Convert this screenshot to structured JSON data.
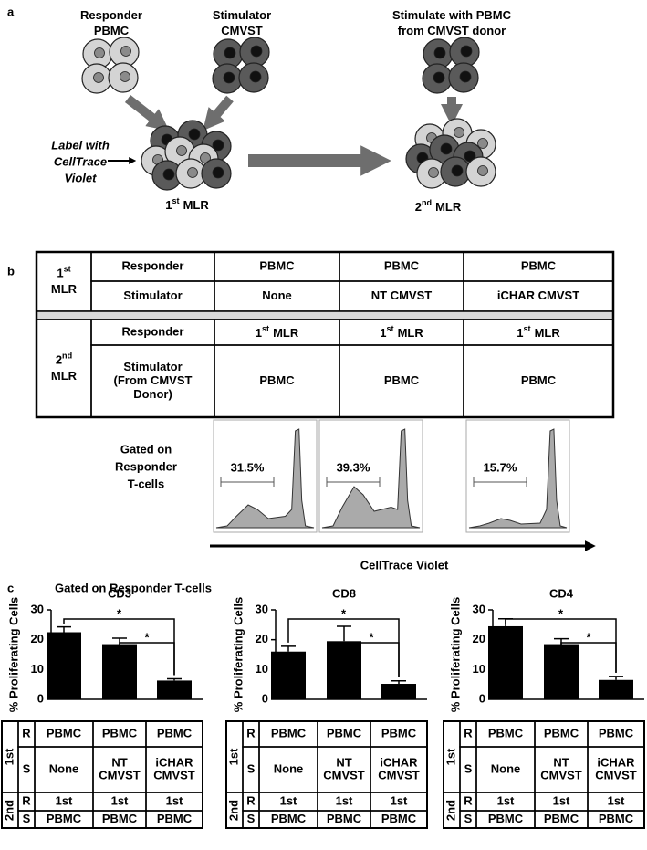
{
  "panel_a": {
    "label": "a",
    "responder": [
      "Responder",
      "PBMC"
    ],
    "stimulator": [
      "Stimulator",
      "CMVST"
    ],
    "restimulate": [
      "Stimulate with PBMC",
      "from CMVST donor"
    ],
    "label_note": [
      "Label with",
      "CellTrace",
      "Violet"
    ],
    "first_mlr": {
      "ord": "1",
      "sup": "st",
      "text": "MLR"
    },
    "second_mlr": {
      "ord": "2",
      "sup": "nd",
      "text": "MLR"
    }
  },
  "panel_b": {
    "label": "b",
    "table": {
      "groups": [
        {
          "ord": "1",
          "sup": "st",
          "text": "MLR",
          "rows": [
            [
              "Responder",
              "PBMC",
              "PBMC",
              "PBMC"
            ],
            [
              "Stimulator",
              "None",
              "NT CMVST",
              "iCHAR CMVST"
            ]
          ]
        },
        {
          "ord": "2",
          "sup": "nd",
          "text": "MLR",
          "rows": [
            [
              "Responder",
              {
                "ord": "1",
                "sup": "st",
                "text": "MLR"
              },
              {
                "ord": "1",
                "sup": "st",
                "text": "MLR"
              },
              {
                "ord": "1",
                "sup": "st",
                "text": "MLR"
              }
            ],
            [
              [
                "Stimulator",
                "(From CMVST",
                "Donor)"
              ],
              "PBMC",
              "PBMC",
              "PBMC"
            ]
          ]
        }
      ]
    },
    "gate_label": [
      "Gated on",
      "Responder",
      "T-cells"
    ],
    "percentages": [
      "31.5%",
      "39.3%",
      "15.7%"
    ],
    "x_axis_label": "CellTrace Violet"
  },
  "panel_c": {
    "label": "c",
    "subtitle": "Gated on Responder T-cells",
    "tables": [
      {
        "groups": [
          {
            "label": "1st",
            "rows": [
              [
                "R",
                "PBMC",
                "PBMC",
                "PBMC"
              ],
              [
                "S",
                "None",
                [
                  "NT",
                  "CMVST"
                ],
                [
                  "iCHAR",
                  "CMVST"
                ]
              ]
            ]
          },
          {
            "label": "2nd",
            "rows": [
              [
                "R",
                "1st",
                "1st",
                "1st"
              ],
              [
                "S",
                "PBMC",
                "PBMC",
                "PBMC"
              ]
            ]
          }
        ]
      },
      {
        "groups": [
          {
            "label": "1st",
            "rows": [
              [
                "R",
                "PBMC",
                "PBMC",
                "PBMC"
              ],
              [
                "S",
                "None",
                [
                  "NT",
                  "CMVST"
                ],
                [
                  "iCHAR",
                  "CMVST"
                ]
              ]
            ]
          },
          {
            "label": "2nd",
            "rows": [
              [
                "R",
                "1st",
                "1st",
                "1st"
              ],
              [
                "S",
                "PBMC",
                "PBMC",
                "PBMC"
              ]
            ]
          }
        ]
      },
      {
        "groups": [
          {
            "label": "1st",
            "rows": [
              [
                "R",
                "PBMC",
                "PBMC",
                "PBMC"
              ],
              [
                "S",
                "None",
                [
                  "NT",
                  "CMVST"
                ],
                [
                  "iCHAR",
                  "CMVST"
                ]
              ]
            ]
          },
          {
            "label": "2nd",
            "rows": [
              [
                "R",
                "1st",
                "1st",
                "1st"
              ],
              [
                "S",
                "PBMC",
                "PBMC",
                "PBMC"
              ]
            ]
          }
        ]
      }
    ]
  },
  "chart_data": [
    {
      "type": "bar",
      "title": "CD3",
      "ylabel": "% Proliferating Cells",
      "values": [
        22.5,
        18.5,
        6.3
      ],
      "errors": [
        1.8,
        2,
        0.6
      ],
      "ylim": [
        0,
        30
      ],
      "yticks": [
        0,
        10,
        20,
        30
      ],
      "color": "#000000",
      "annotations": [
        "*",
        "*"
      ]
    },
    {
      "type": "bar",
      "title": "CD8",
      "ylabel": "% Proliferating Cells",
      "values": [
        16,
        19.5,
        5.2
      ],
      "errors": [
        1.8,
        5,
        1
      ],
      "ylim": [
        0,
        30
      ],
      "yticks": [
        0,
        10,
        20,
        30
      ],
      "color": "#000000",
      "annotations": [
        "*",
        "*"
      ]
    },
    {
      "type": "bar",
      "title": "CD4",
      "ylabel": "% Proliferating Cells",
      "values": [
        24.5,
        18.5,
        6.5
      ],
      "errors": [
        2.5,
        1.8,
        1.2
      ],
      "ylim": [
        0,
        30
      ],
      "yticks": [
        0,
        10,
        20,
        30
      ],
      "color": "#000000",
      "annotations": [
        "*",
        "*"
      ]
    }
  ]
}
